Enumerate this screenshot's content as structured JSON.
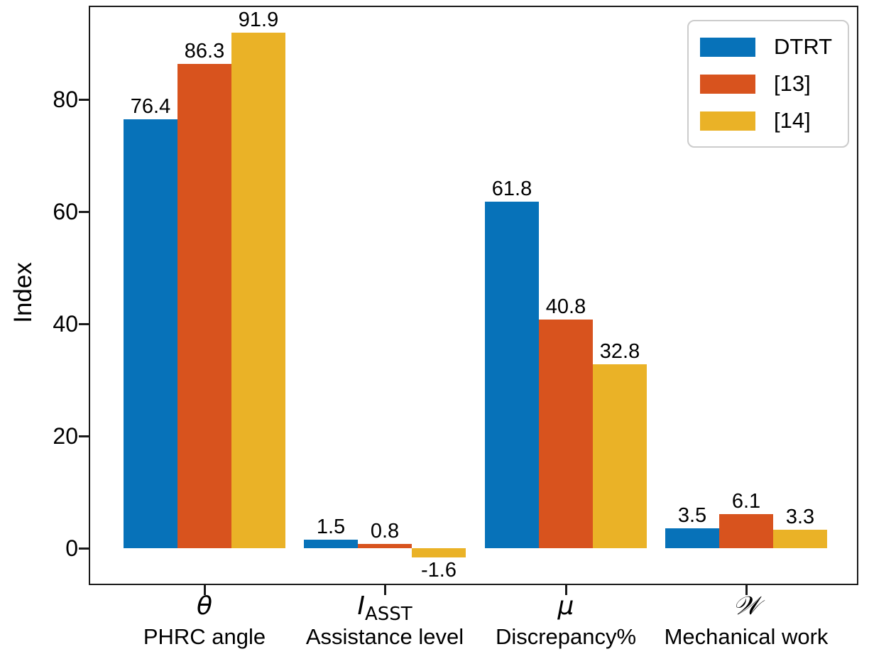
{
  "chart_data": {
    "type": "bar",
    "title": "",
    "ylabel": "Index",
    "yticks": [
      0,
      20,
      40,
      60,
      80
    ],
    "ylim": [
      -6.6,
      96.8
    ],
    "grid": false,
    "legend_position": "upper right",
    "value_labels": true,
    "categories": [
      {
        "symbol": "θ",
        "subscript": "",
        "sub": "PHRC angle"
      },
      {
        "symbol": "I",
        "subscript": "ASST",
        "sub": "Assistance level"
      },
      {
        "symbol": "μ",
        "subscript": "",
        "sub": "Discrepancy%"
      },
      {
        "symbol": "𝒲",
        "subscript": "",
        "sub": "Mechanical work"
      }
    ],
    "series": [
      {
        "name": "DTRT",
        "color": "#0772B9",
        "values": [
          76.4,
          1.5,
          61.8,
          3.5
        ]
      },
      {
        "name": "[13]",
        "color": "#D8531E",
        "values": [
          86.3,
          0.8,
          40.8,
          6.1
        ]
      },
      {
        "name": "[14]",
        "color": "#EAB227",
        "values": [
          91.9,
          -1.6,
          32.8,
          3.3
        ]
      }
    ]
  }
}
